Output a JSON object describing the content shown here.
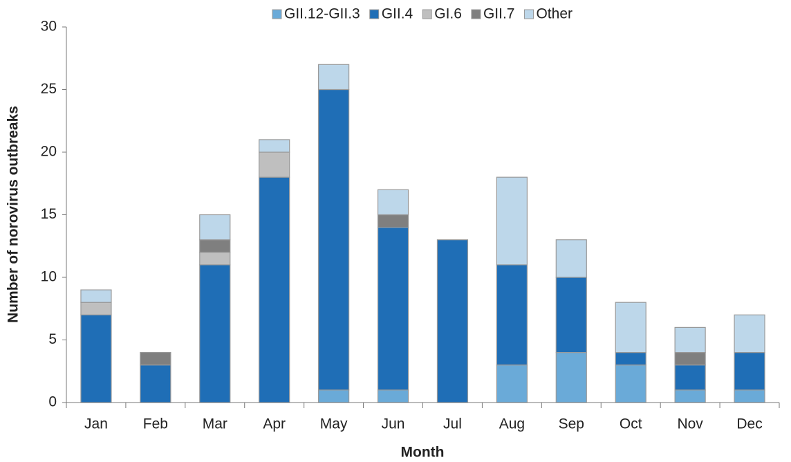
{
  "chart_data": {
    "type": "stacked_bar",
    "x_label": "Month",
    "y_label": "Number of norovirus outbreaks",
    "categories": [
      "Jan",
      "Feb",
      "Mar",
      "Apr",
      "May",
      "Jun",
      "Jul",
      "Aug",
      "Sep",
      "Oct",
      "Nov",
      "Dec"
    ],
    "series": [
      {
        "name": "GII.12-GII.3",
        "color": "#6aaad8",
        "values": [
          0,
          0,
          0,
          0,
          1,
          1,
          0,
          3,
          4,
          3,
          1,
          1
        ]
      },
      {
        "name": "GII.4",
        "color": "#1f6eb6",
        "values": [
          7,
          3,
          11,
          18,
          24,
          13,
          13,
          8,
          6,
          1,
          2,
          3
        ]
      },
      {
        "name": "GI.6",
        "color": "#bfbfbf",
        "values": [
          1,
          0,
          1,
          2,
          0,
          0,
          0,
          0,
          0,
          0,
          0,
          0
        ]
      },
      {
        "name": "GII.7",
        "color": "#7f7f7f",
        "values": [
          0,
          1,
          1,
          0,
          0,
          1,
          0,
          0,
          0,
          0,
          1,
          0
        ]
      },
      {
        "name": "Other",
        "color": "#bdd7ea",
        "values": [
          1,
          0,
          2,
          1,
          2,
          2,
          0,
          7,
          3,
          4,
          2,
          3
        ]
      }
    ],
    "ylim": [
      0,
      30
    ],
    "yticks": [
      0,
      5,
      10,
      15,
      20,
      25,
      30
    ],
    "legend": "top"
  }
}
